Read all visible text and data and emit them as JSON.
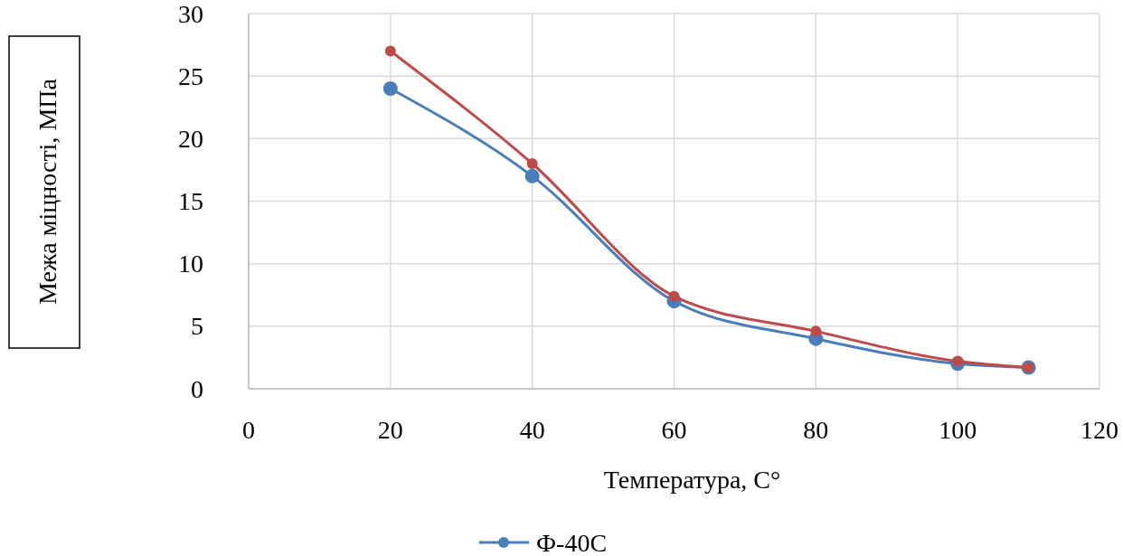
{
  "chart_data": {
    "type": "line",
    "xlabel": "Температура, С°",
    "ylabel": "Межа міцності, МПа",
    "x": [
      20,
      40,
      60,
      80,
      100,
      110
    ],
    "series": [
      {
        "name": "Ф-40С",
        "color": "#4a7ebb",
        "values": [
          24,
          17,
          7,
          4,
          2,
          1.7
        ]
      },
      {
        "color": "#be4b48",
        "values": [
          27,
          18,
          7.4,
          4.6,
          2.2,
          1.7
        ]
      }
    ],
    "xlim": [
      0,
      120
    ],
    "xticks": [
      0,
      20,
      40,
      60,
      80,
      100,
      120
    ],
    "ylim": [
      0,
      30
    ],
    "yticks": [
      0,
      5,
      10,
      15,
      20,
      25,
      30
    ],
    "grid": true,
    "legend": "bottom",
    "marker": "circle",
    "line_style": "solid"
  }
}
